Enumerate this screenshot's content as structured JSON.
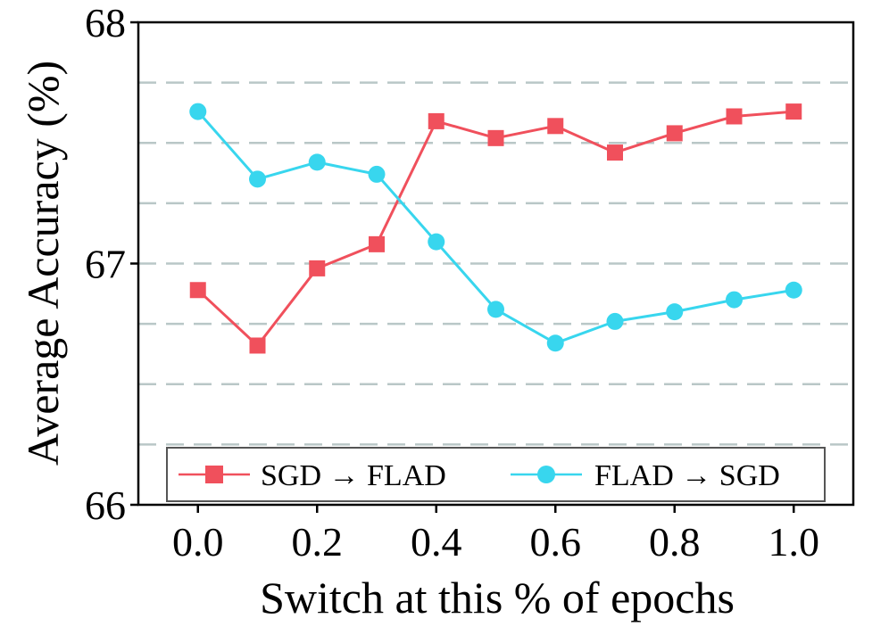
{
  "chart_data": {
    "type": "line",
    "title": "",
    "xlabel": "Switch at this % of epochs",
    "ylabel": "Average Accuracy (%)",
    "x": [
      0.0,
      0.1,
      0.2,
      0.3,
      0.4,
      0.5,
      0.6,
      0.7,
      0.8,
      0.9,
      1.0
    ],
    "xlim": [
      -0.1,
      1.1
    ],
    "ylim": [
      66,
      68
    ],
    "x_ticks": [
      "0.0",
      "0.2",
      "0.4",
      "0.6",
      "0.8",
      "1.0"
    ],
    "x_tick_values": [
      0.0,
      0.2,
      0.4,
      0.6,
      0.8,
      1.0
    ],
    "y_ticks": [
      "66",
      "67",
      "68"
    ],
    "y_tick_values": [
      66,
      67,
      68
    ],
    "grid": {
      "axis": "y",
      "style": "dashed",
      "values": [
        66.25,
        66.5,
        66.75,
        67.0,
        67.25,
        67.5,
        67.75
      ]
    },
    "legend": {
      "placement": "bottom-center"
    },
    "series": [
      {
        "name": "SGD → FLAD",
        "color": "#f0505c",
        "marker": "square",
        "values": [
          66.89,
          66.66,
          66.98,
          67.08,
          67.59,
          67.52,
          67.57,
          67.46,
          67.54,
          67.61,
          67.63
        ]
      },
      {
        "name": "FLAD → SGD",
        "color": "#38d6ee",
        "marker": "circle",
        "values": [
          67.63,
          67.35,
          67.42,
          67.37,
          67.09,
          66.81,
          66.67,
          66.76,
          66.8,
          66.85,
          66.89
        ]
      }
    ]
  }
}
